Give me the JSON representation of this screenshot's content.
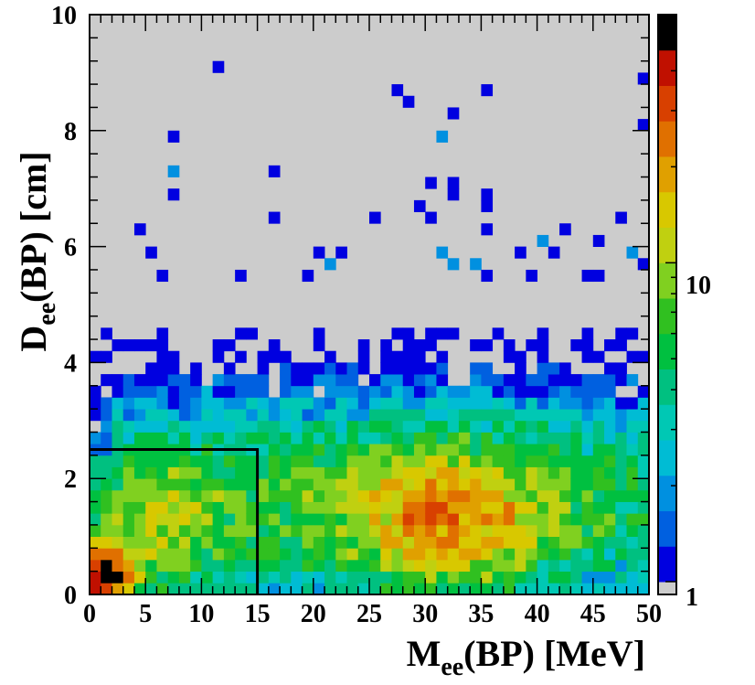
{
  "chart_data": {
    "type": "heatmap",
    "title": "",
    "xlabel": "M",
    "xlabel_sub": "ee",
    "xlabel_rest": "(BP) [MeV]",
    "ylabel": "D",
    "ylabel_sub": "ee",
    "ylabel_rest": "(BP) [cm]",
    "xlim": [
      0,
      50
    ],
    "ylim": [
      0,
      10
    ],
    "x_ticks": [
      "0",
      "5",
      "10",
      "15",
      "20",
      "25",
      "30",
      "35",
      "40",
      "45",
      "50"
    ],
    "y_ticks": [
      "0",
      "2",
      "4",
      "6",
      "8",
      "10"
    ],
    "z_scale": "log",
    "zlim": [
      1,
      60
    ],
    "z_tick_labels": [
      "1",
      "10"
    ],
    "background_color": "#cccccc",
    "nx_bins": 50,
    "ny_bins": 50,
    "cuts": {
      "x_max": 15,
      "y_max": 2.5
    },
    "palette": [
      "#0000e0",
      "#0060e0",
      "#0090e0",
      "#00bcd4",
      "#00c8b4",
      "#00c080",
      "#00c040",
      "#30c020",
      "#80d020",
      "#c0d010",
      "#d8c800",
      "#e0a000",
      "#e07000",
      "#d84000",
      "#c01000",
      "#000000"
    ],
    "hot_bins": [
      {
        "x": 1.5,
        "y": 0.3,
        "z": 60
      },
      {
        "x": 0.5,
        "y": 0.1,
        "z": 45
      },
      {
        "x": 1.5,
        "y": 0.1,
        "z": 35
      },
      {
        "x": 2.5,
        "y": 0.5,
        "z": 30
      },
      {
        "x": 2.5,
        "y": 0.7,
        "z": 28
      },
      {
        "x": 3.5,
        "y": 0.5,
        "z": 24
      },
      {
        "x": 31.5,
        "y": 1.3,
        "z": 26
      },
      {
        "x": 29.5,
        "y": 1.1,
        "z": 24
      },
      {
        "x": 32.5,
        "y": 1.5,
        "z": 24
      }
    ],
    "sparse_bins": [
      {
        "x": 11.5,
        "y": 9.1,
        "z": 1
      },
      {
        "x": 27.5,
        "y": 8.7,
        "z": 1
      },
      {
        "x": 28.5,
        "y": 8.5,
        "z": 1
      },
      {
        "x": 35.5,
        "y": 8.7,
        "z": 1
      },
      {
        "x": 49.5,
        "y": 8.9,
        "z": 1
      },
      {
        "x": 32.5,
        "y": 8.3,
        "z": 1
      },
      {
        "x": 31.5,
        "y": 7.9,
        "z": 2
      },
      {
        "x": 49.5,
        "y": 8.1,
        "z": 1
      },
      {
        "x": 7.5,
        "y": 7.9,
        "z": 1
      },
      {
        "x": 7.5,
        "y": 7.3,
        "z": 2
      },
      {
        "x": 16.5,
        "y": 7.3,
        "z": 1
      },
      {
        "x": 7.5,
        "y": 6.9,
        "z": 1
      },
      {
        "x": 30.5,
        "y": 7.1,
        "z": 1
      },
      {
        "x": 32.5,
        "y": 7.1,
        "z": 1
      },
      {
        "x": 32.5,
        "y": 6.9,
        "z": 1
      },
      {
        "x": 35.5,
        "y": 6.9,
        "z": 1
      },
      {
        "x": 29.5,
        "y": 6.7,
        "z": 1
      },
      {
        "x": 35.5,
        "y": 6.7,
        "z": 1
      },
      {
        "x": 30.5,
        "y": 6.5,
        "z": 1
      },
      {
        "x": 16.5,
        "y": 6.5,
        "z": 1
      },
      {
        "x": 25.5,
        "y": 6.5,
        "z": 1
      },
      {
        "x": 4.5,
        "y": 6.3,
        "z": 1
      },
      {
        "x": 35.5,
        "y": 6.3,
        "z": 1
      },
      {
        "x": 42.5,
        "y": 6.3,
        "z": 1
      },
      {
        "x": 47.5,
        "y": 6.5,
        "z": 1
      },
      {
        "x": 45.5,
        "y": 6.1,
        "z": 1
      },
      {
        "x": 40.5,
        "y": 6.1,
        "z": 2
      },
      {
        "x": 5.5,
        "y": 5.9,
        "z": 1
      },
      {
        "x": 20.5,
        "y": 5.9,
        "z": 1
      },
      {
        "x": 22.5,
        "y": 5.9,
        "z": 1
      },
      {
        "x": 31.5,
        "y": 5.9,
        "z": 2
      },
      {
        "x": 41.5,
        "y": 5.9,
        "z": 1
      },
      {
        "x": 48.5,
        "y": 5.9,
        "z": 2
      },
      {
        "x": 38.5,
        "y": 5.9,
        "z": 1
      },
      {
        "x": 21.5,
        "y": 5.7,
        "z": 2
      },
      {
        "x": 32.5,
        "y": 5.7,
        "z": 2
      },
      {
        "x": 34.5,
        "y": 5.7,
        "z": 2
      },
      {
        "x": 49.5,
        "y": 5.7,
        "z": 1
      },
      {
        "x": 6.5,
        "y": 5.5,
        "z": 1
      },
      {
        "x": 13.5,
        "y": 5.5,
        "z": 1
      },
      {
        "x": 19.5,
        "y": 5.5,
        "z": 1
      },
      {
        "x": 35.5,
        "y": 5.5,
        "z": 1
      },
      {
        "x": 39.5,
        "y": 5.5,
        "z": 1
      },
      {
        "x": 44.5,
        "y": 5.5,
        "z": 1
      },
      {
        "x": 45.5,
        "y": 5.5,
        "z": 1
      }
    ]
  },
  "colorbar": {
    "label_one": "1",
    "label_ten": "10"
  }
}
